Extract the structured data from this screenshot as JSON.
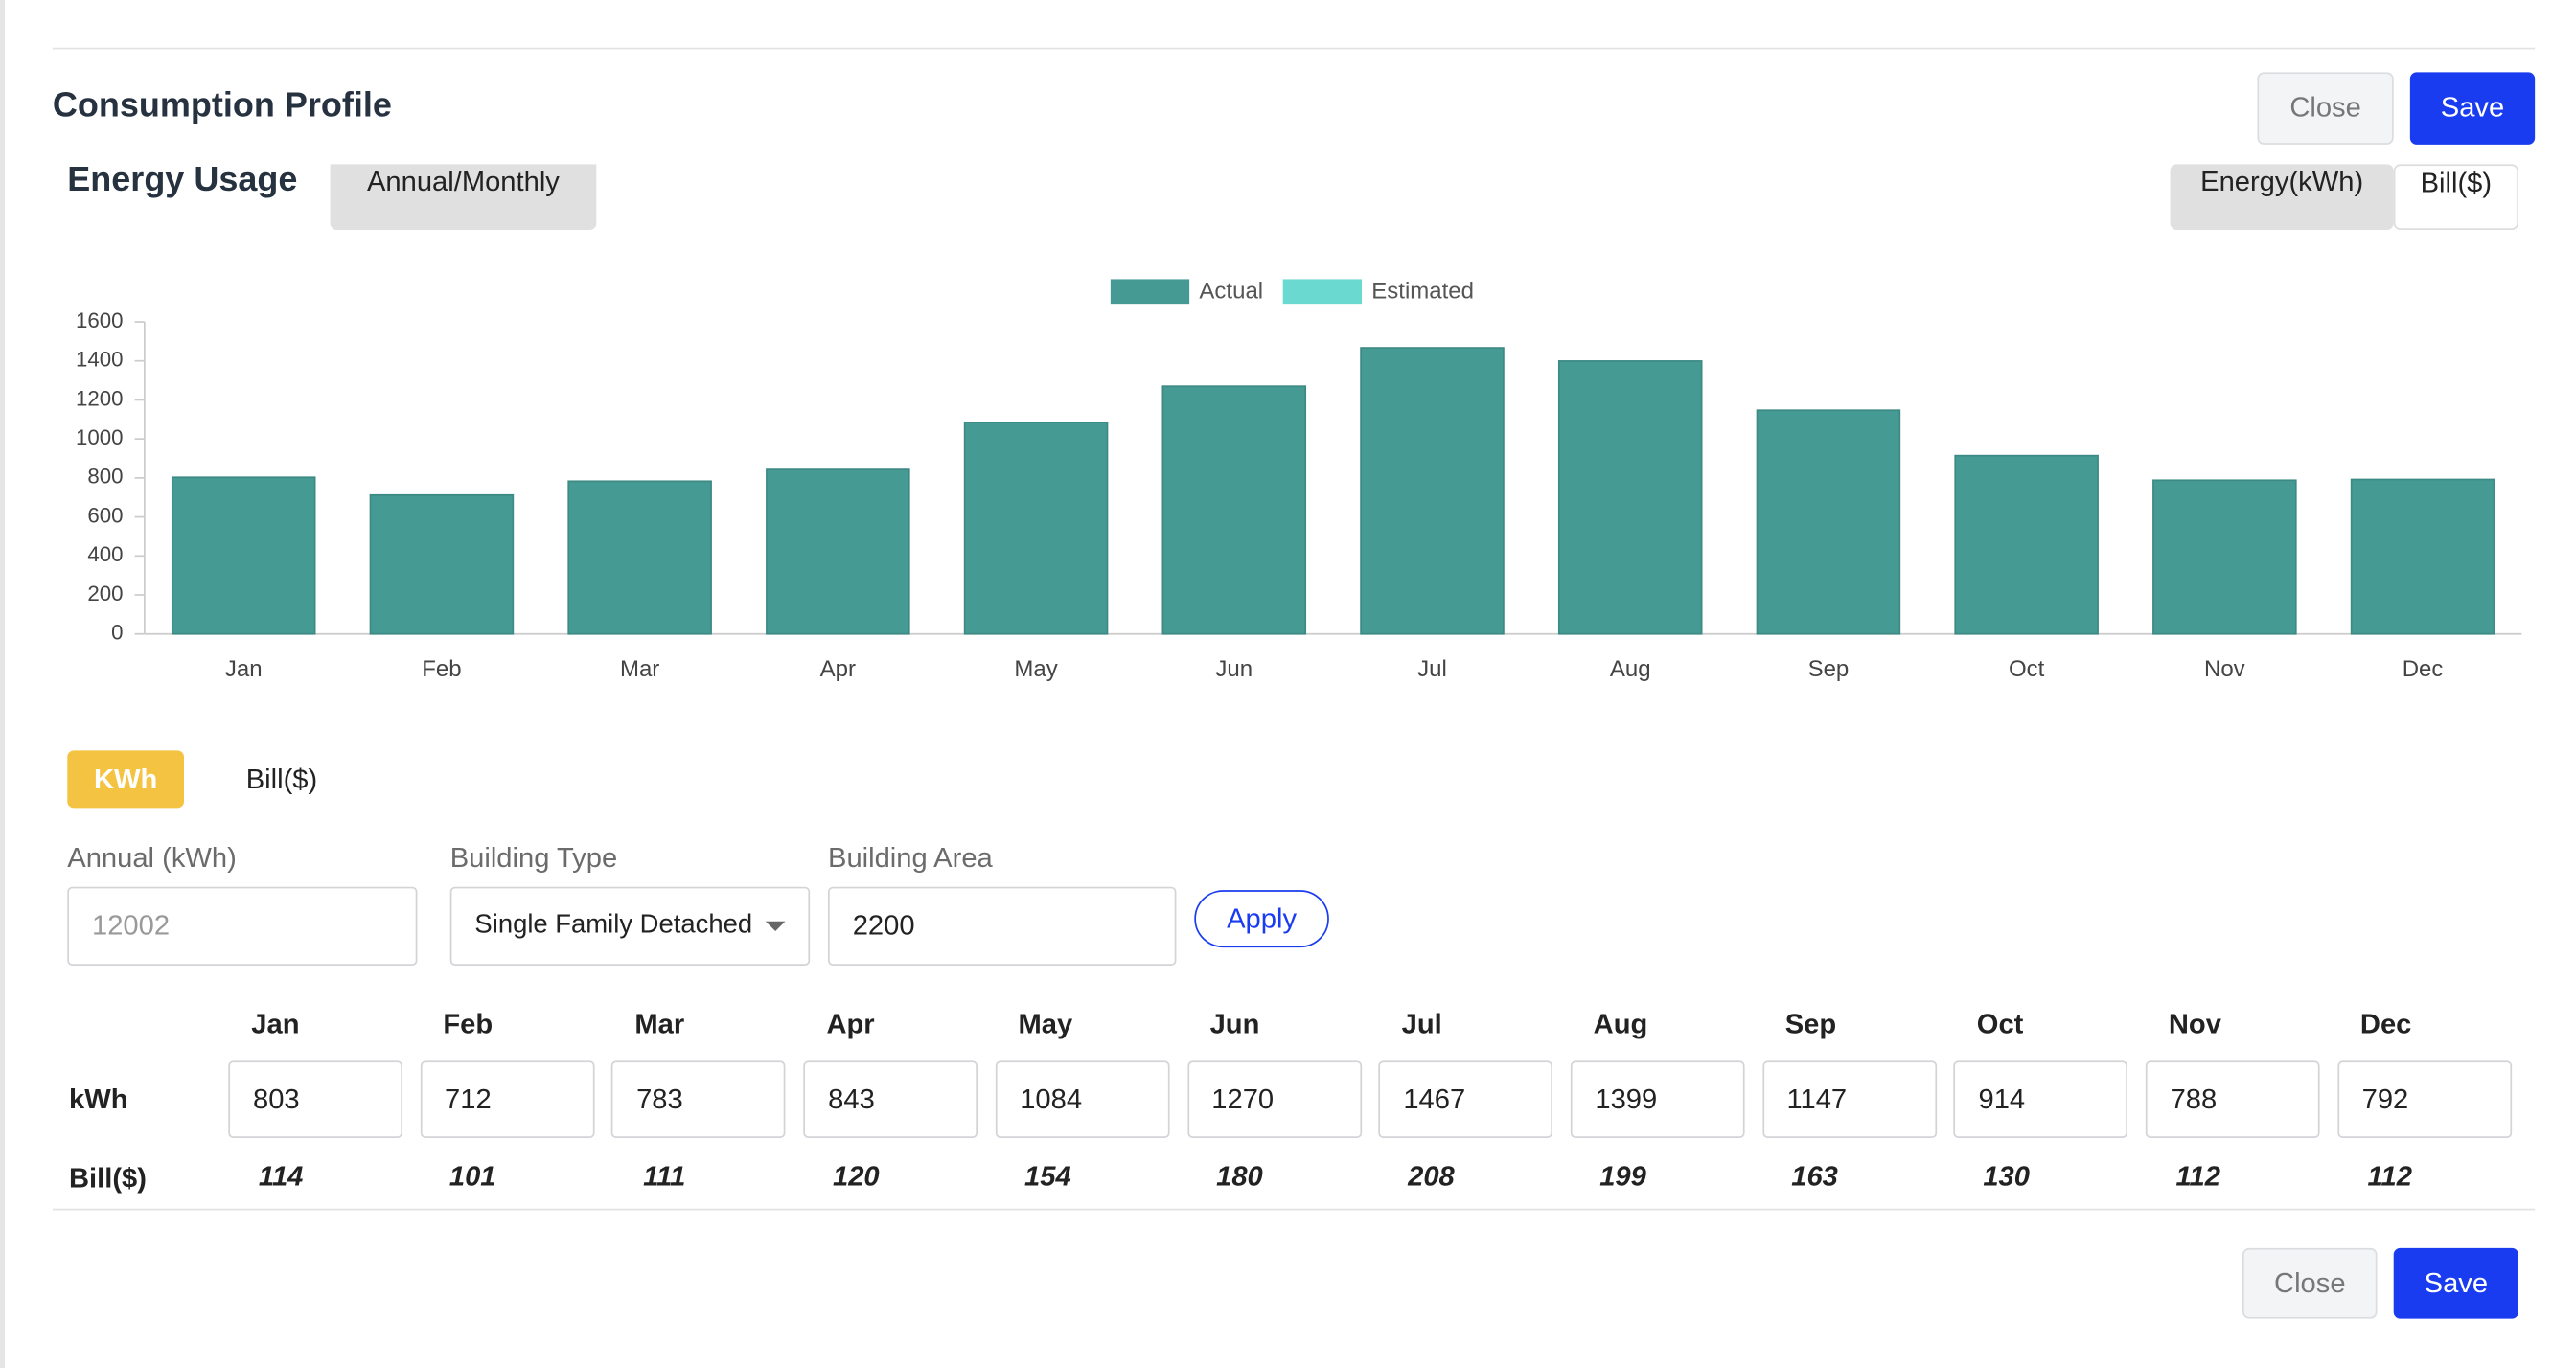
{
  "header": {
    "title": "Consumption Profile",
    "close": "Close",
    "save": "Save"
  },
  "section": {
    "title": "Energy Usage",
    "tab": "Annual/Monthly",
    "toggle": [
      "Energy(kWh)",
      "Bill($)"
    ]
  },
  "chart_data": {
    "type": "bar",
    "stacked": true,
    "legend": "top",
    "categories": [
      "Jan",
      "Feb",
      "Mar",
      "Apr",
      "May",
      "Jun",
      "Jul",
      "Aug",
      "Sep",
      "Oct",
      "Nov",
      "Dec"
    ],
    "series": [
      {
        "name": "Actual",
        "color": "#459a94",
        "values": [
          803,
          712,
          783,
          843,
          1084,
          1270,
          1467,
          1399,
          1147,
          914,
          788,
          792
        ]
      },
      {
        "name": "Estimated",
        "color": "#6ad9d0",
        "values": [
          0,
          0,
          0,
          0,
          0,
          0,
          0,
          0,
          0,
          0,
          0,
          0
        ]
      }
    ],
    "ylim": [
      0,
      1600
    ],
    "yticks": [
      0,
      200,
      400,
      600,
      800,
      1000,
      1200,
      1400,
      1600
    ]
  },
  "unit_tabs": [
    "KWh",
    "Bill($)"
  ],
  "form": {
    "annual_label": "Annual (kWh)",
    "annual_placeholder": "12002",
    "building_type_label": "Building Type",
    "building_type": "Single Family Detached",
    "building_area_label": "Building Area",
    "building_area": "2200",
    "apply": "Apply"
  },
  "table": {
    "row_labels": [
      "kWh",
      "Bill($)"
    ],
    "bill": [
      114,
      101,
      111,
      120,
      154,
      180,
      208,
      199,
      163,
      130,
      112,
      112
    ]
  },
  "footer": {
    "close": "Close",
    "save": "Save"
  }
}
